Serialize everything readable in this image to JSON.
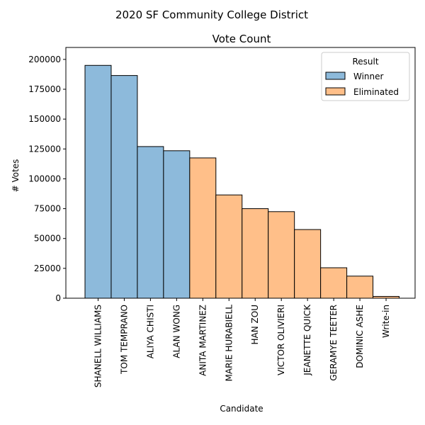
{
  "figure": {
    "suptitle": "2020 SF Community College District"
  },
  "chart_data": {
    "type": "bar",
    "title": "Vote Count",
    "xlabel": "Candidate",
    "ylabel": "# Votes",
    "ylim": [
      0,
      210000
    ],
    "yticks": [
      0,
      25000,
      50000,
      75000,
      100000,
      125000,
      150000,
      175000,
      200000
    ],
    "categories": [
      "SHANELL WILLIAMS",
      "TOM TEMPRANO",
      "ALIYA CHISTI",
      "ALAN WONG",
      "ANITA MARTINEZ",
      "MARIE HURABIELL",
      "HAN ZOU",
      "VICTOR OLIVIERI",
      "JEANETTE QUICK",
      "GERAMYE TEETER",
      "DOMINIC ASHE",
      "Write-in"
    ],
    "values": [
      195000,
      186500,
      127000,
      123500,
      117500,
      86500,
      75000,
      72500,
      57500,
      25500,
      18500,
      1500
    ],
    "result": [
      "Winner",
      "Winner",
      "Winner",
      "Winner",
      "Eliminated",
      "Eliminated",
      "Eliminated",
      "Eliminated",
      "Eliminated",
      "Eliminated",
      "Eliminated",
      "Eliminated"
    ],
    "legend": {
      "title": "Result",
      "placement": "top-right",
      "entries": [
        {
          "name": "Winner",
          "color": "#8dbadb"
        },
        {
          "name": "Eliminated",
          "color": "#ffbf89"
        }
      ]
    },
    "grid": false,
    "colors": {
      "Winner": "#8dbadb",
      "Eliminated": "#ffbf89",
      "edge": "#000000"
    }
  }
}
